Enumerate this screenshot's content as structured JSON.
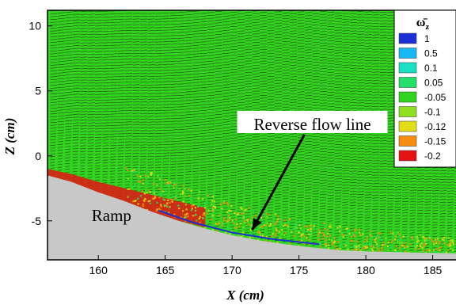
{
  "chart_data": {
    "type": "heatmap",
    "title": "",
    "xlabel": "X (cm)",
    "ylabel": "Z (cm)",
    "xlim": [
      156.2,
      186.8
    ],
    "ylim": [
      -8.0,
      11.2
    ],
    "xticks": [
      160,
      165,
      170,
      175,
      180,
      185
    ],
    "yticks": [
      -5,
      0,
      5,
      10
    ],
    "legend": {
      "title_symbol": "ω̄",
      "title_subscript": "z",
      "placement": "top-right",
      "levels": [
        {
          "label": "1",
          "color": "#1c2fd4"
        },
        {
          "label": "0.5",
          "color": "#18b8f2"
        },
        {
          "label": "0.1",
          "color": "#1ae0c4"
        },
        {
          "label": "0.05",
          "color": "#22e06b"
        },
        {
          "label": "-0.05",
          "color": "#33d420"
        },
        {
          "label": "-0.1",
          "color": "#8ee021"
        },
        {
          "label": "-0.12",
          "color": "#e3dd18"
        },
        {
          "label": "-0.15",
          "color": "#f58d10"
        },
        {
          "label": "-0.2",
          "color": "#e51414"
        }
      ]
    },
    "background_color": "#33d420",
    "ramp_color": "#c8c8c8",
    "ramp_surface": {
      "x": [
        156.2,
        158,
        160,
        162,
        164,
        166,
        168,
        170,
        172,
        174,
        176,
        178,
        180,
        182,
        184,
        186.8
      ],
      "z": [
        -1.5,
        -2.0,
        -2.8,
        -3.5,
        -4.3,
        -5.0,
        -5.6,
        -6.1,
        -6.5,
        -6.8,
        -7.05,
        -7.25,
        -7.35,
        -7.4,
        -7.45,
        -7.5
      ]
    },
    "reverse_flow_line": {
      "x": [
        164.5,
        167,
        170,
        173,
        176.5
      ],
      "z": [
        -4.2,
        -5.1,
        -5.9,
        -6.4,
        -6.8
      ]
    },
    "shear_layer_red": {
      "x": [
        156.2,
        158,
        160,
        162,
        164,
        166,
        168
      ],
      "z_top": [
        -1.0,
        -1.4,
        -2.0,
        -2.5,
        -3.0,
        -3.5,
        -4.0
      ],
      "z_bottom": [
        -1.6,
        -2.1,
        -2.9,
        -3.6,
        -4.4,
        -5.0,
        -5.5
      ]
    },
    "annotations": [
      {
        "text": "Reverse flow line",
        "x": 176,
        "z": 2.0,
        "arrow_to_x": 171.5,
        "arrow_to_z": -5.7
      },
      {
        "text": "Ramp",
        "x": 159.5,
        "z": -5.0
      }
    ]
  }
}
